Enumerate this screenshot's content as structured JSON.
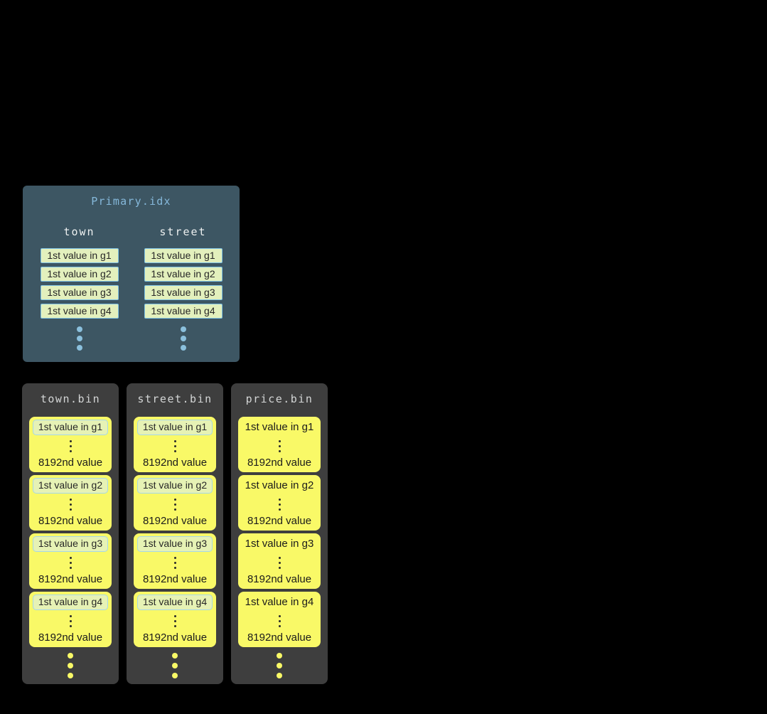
{
  "colors": {
    "page_bg": "#000000",
    "primary_panel_bg": "#3d5663",
    "primary_title": "#85b8da",
    "primary_header": "#edf0f0",
    "cell_bg": "#e3f0bd",
    "cell_border": "#7fc3e6",
    "cell_text": "#262626",
    "primary_dot": "#8bc0dd",
    "bin_panel_bg": "#3e3e3e",
    "bin_title": "#d4d6d6",
    "group_bg": "#f9f967",
    "group_text": "#1b1b1b",
    "inner_box_bg": "#e6f2b5",
    "inner_box_border": "#a6d7e8",
    "bin_dot": "#f9f967",
    "inner_dot": "#2a2a2a"
  },
  "primary_index": {
    "title": "Primary.idx",
    "columns": [
      {
        "header": "town",
        "cells": [
          "1st value in g1",
          "1st value in g2",
          "1st value in g3",
          "1st value in g4"
        ]
      },
      {
        "header": "street",
        "cells": [
          "1st value in g1",
          "1st value in g2",
          "1st value in g3",
          "1st value in g4"
        ]
      }
    ]
  },
  "bin_files": [
    {
      "title": "town.bin",
      "groups": [
        {
          "first": "1st value in g1",
          "last": "8192nd value"
        },
        {
          "first": "1st value in g2",
          "last": "8192nd value"
        },
        {
          "first": "1st value in g3",
          "last": "8192nd value"
        },
        {
          "first": "1st value in g4",
          "last": "8192nd value"
        }
      ]
    },
    {
      "title": "street.bin",
      "groups": [
        {
          "first": "1st value in g1",
          "last": "8192nd value"
        },
        {
          "first": "1st value in g2",
          "last": "8192nd value"
        },
        {
          "first": "1st value in g3",
          "last": "8192nd value"
        },
        {
          "first": "1st value in g4",
          "last": "8192nd value"
        }
      ]
    },
    {
      "title": "price.bin",
      "groups": [
        {
          "first": "1st value in g1",
          "last": "8192nd value"
        },
        {
          "first": "1st value in g2",
          "last": "8192nd value"
        },
        {
          "first": "1st value in g3",
          "last": "8192nd value"
        },
        {
          "first": "1st value in g4",
          "last": "8192nd value"
        }
      ]
    }
  ]
}
